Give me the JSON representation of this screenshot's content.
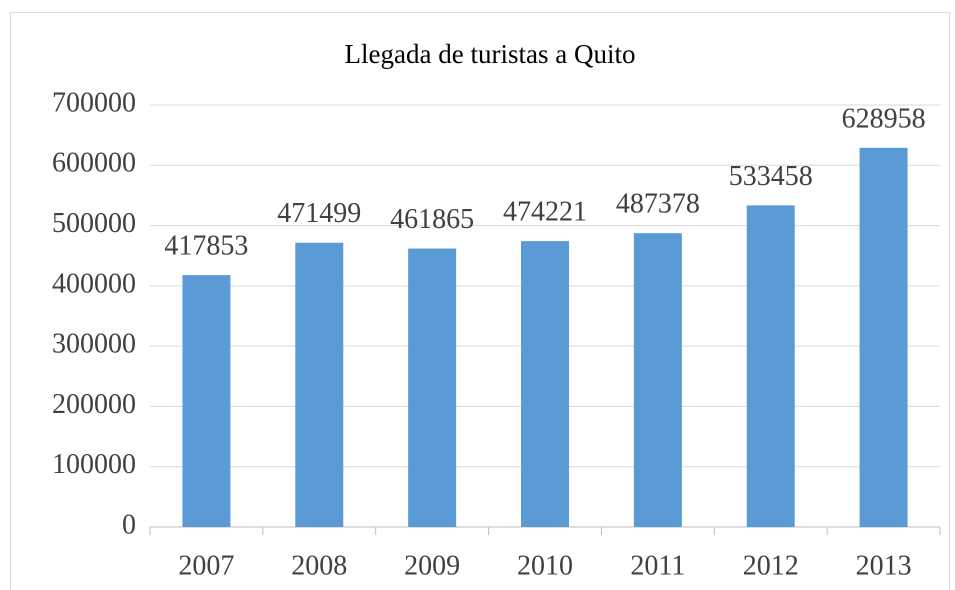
{
  "chart_data": {
    "type": "bar",
    "title": "Llegada de turistas a Quito",
    "categories": [
      "2007",
      "2008",
      "2009",
      "2010",
      "2011",
      "2012",
      "2013"
    ],
    "values": [
      417853,
      471499,
      461865,
      474221,
      487378,
      533458,
      628958
    ],
    "color": "#5b9bd5",
    "ylim": [
      0,
      700000
    ],
    "yticks": [
      0,
      100000,
      200000,
      300000,
      400000,
      500000,
      600000,
      700000
    ],
    "grid": true
  }
}
